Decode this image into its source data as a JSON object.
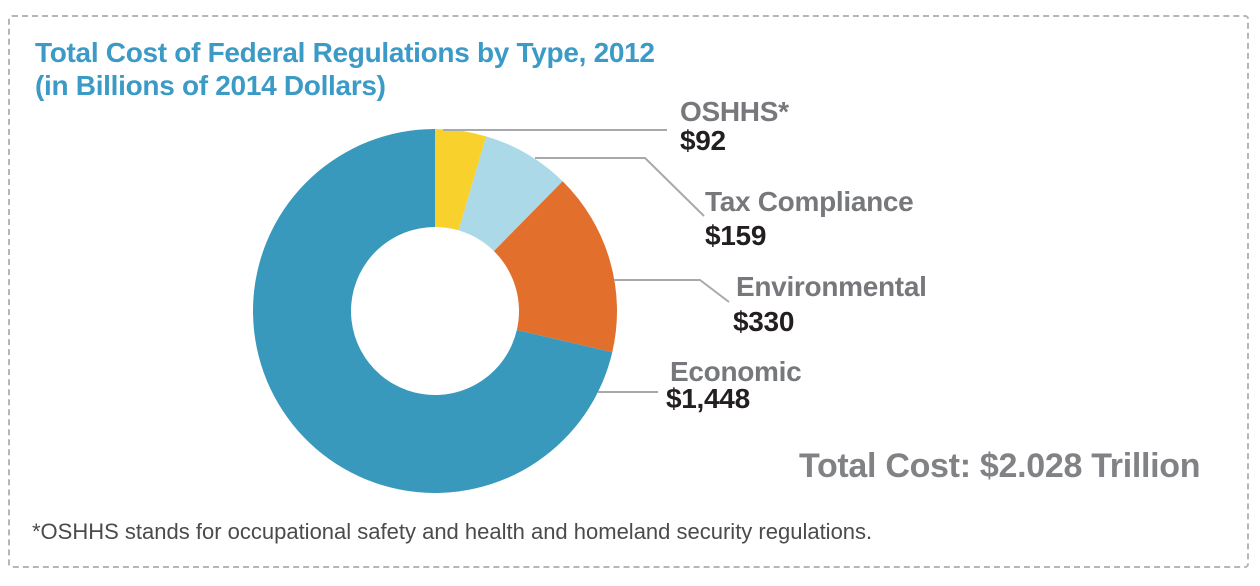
{
  "chart_data": {
    "type": "pie",
    "subtype": "donut",
    "title_line1": "Total Cost of Federal Regulations by Type, 2012",
    "title_line2": "(in Billions of 2014 Dollars)",
    "start_angle_deg": 0,
    "direction": "clockwise",
    "legend_position": "callout-labels-right",
    "slices": [
      {
        "label": "OSHHS*",
        "value": 92,
        "value_label": "$92",
        "color": "#f8d12d"
      },
      {
        "label": "Tax Compliance",
        "value": 159,
        "value_label": "$159",
        "color": "#abd9e8"
      },
      {
        "label": "Environmental",
        "value": 330,
        "value_label": "$330",
        "color": "#e2702c"
      },
      {
        "label": "Economic",
        "value": 1448,
        "value_label": "$1,448",
        "color": "#3999bc"
      }
    ],
    "total_label": "Total Cost: $2.028 Trillion"
  },
  "footnote": "*OSHHS stands for occupational safety and health and homeland security regulations.",
  "colors": {
    "title": "#3b9ac6",
    "category_label": "#77787b",
    "value_label": "#231f20",
    "total_label": "#808285",
    "leader_line": "#a7a9ac",
    "dashed_border": "#b4b6b8",
    "footnote": "#4b4b4d",
    "background": "#ffffff",
    "donut_hole": "#ffffff"
  }
}
